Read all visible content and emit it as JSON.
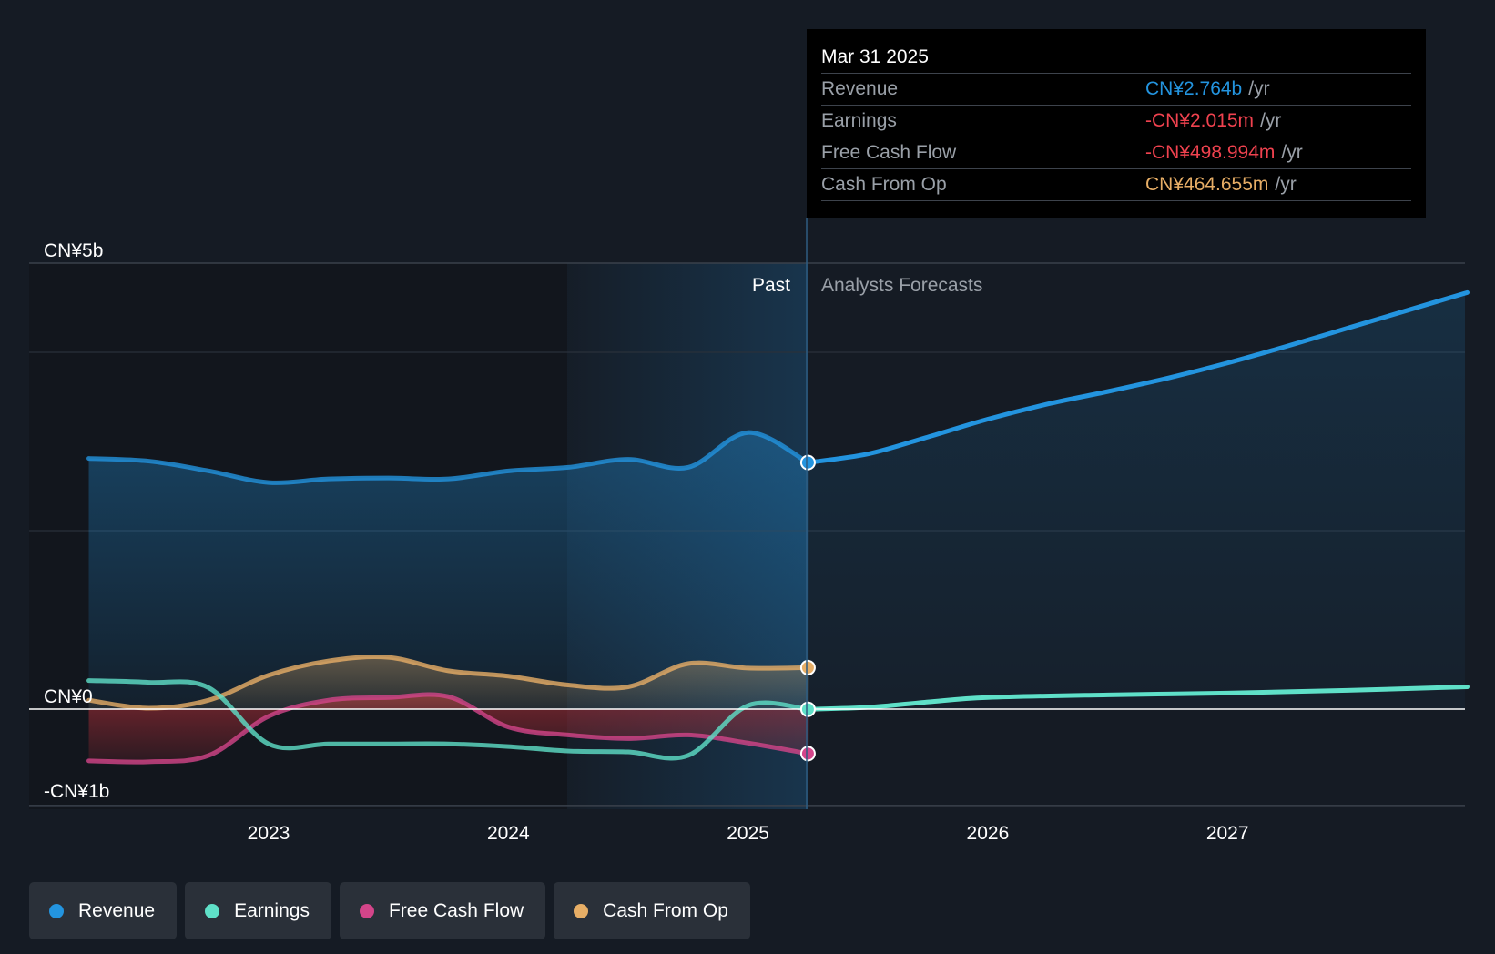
{
  "colors": {
    "revenue": "#2394df",
    "earnings": "#5fe0c8",
    "free_cash_flow": "#d3458a",
    "cash_from_op": "#e7ae66"
  },
  "tooltip": {
    "date": "Mar 31 2025",
    "rows": [
      {
        "label": "Revenue",
        "value": "CN¥2.764b",
        "unit": "/yr"
      },
      {
        "label": "Earnings",
        "value": "-CN¥2.015m",
        "unit": "/yr"
      },
      {
        "label": "Free Cash Flow",
        "value": "-CN¥498.994m",
        "unit": "/yr"
      },
      {
        "label": "Cash From Op",
        "value": "CN¥464.655m",
        "unit": "/yr"
      }
    ]
  },
  "labels": {
    "past": "Past",
    "forecast": "Analysts Forecasts"
  },
  "legend": [
    {
      "label": "Revenue"
    },
    {
      "label": "Earnings"
    },
    {
      "label": "Free Cash Flow"
    },
    {
      "label": "Cash From Op"
    }
  ],
  "chart_data": {
    "type": "line",
    "y_tick_labels": [
      "CN¥5b",
      "CN¥0",
      "-CN¥1b"
    ],
    "y_ticks": [
      5,
      0,
      -1
    ],
    "x_tick_labels": [
      "2023",
      "2024",
      "2025",
      "2026",
      "2027"
    ],
    "x_ticks": [
      2023,
      2024,
      2025,
      2026,
      2027
    ],
    "xlim": [
      2021.0,
      2028.0
    ],
    "ylim": [
      -1.1,
      5.0
    ],
    "past_start": 2024.25,
    "past_end": 2025.25,
    "unit": "CN¥ billions",
    "series": [
      {
        "name": "Revenue",
        "x": [
          2022.25,
          2022.5,
          2022.75,
          2023.0,
          2023.25,
          2023.5,
          2023.75,
          2024.0,
          2024.25,
          2024.5,
          2024.75,
          2025.0,
          2025.25,
          2025.5,
          2025.75,
          2026.0,
          2026.25,
          2026.5,
          2026.75,
          2027.0,
          2027.25,
          2027.5,
          2027.75,
          2028.0
        ],
        "y": [
          2.81,
          2.78,
          2.67,
          2.54,
          2.58,
          2.59,
          2.58,
          2.67,
          2.71,
          2.8,
          2.71,
          3.1,
          2.764,
          2.86,
          3.05,
          3.25,
          3.42,
          3.56,
          3.71,
          3.88,
          4.07,
          4.27,
          4.47,
          4.67
        ]
      },
      {
        "name": "Earnings",
        "x": [
          2022.25,
          2022.5,
          2022.75,
          2023.0,
          2023.25,
          2023.5,
          2023.75,
          2024.0,
          2024.25,
          2024.5,
          2024.75,
          2025.0,
          2025.25,
          2025.5,
          2025.75,
          2026.0,
          2026.5,
          2027.0,
          2027.5,
          2028.0
        ],
        "y": [
          0.32,
          0.3,
          0.24,
          -0.39,
          -0.39,
          -0.39,
          -0.39,
          -0.42,
          -0.47,
          -0.48,
          -0.52,
          0.04,
          -0.002,
          0.02,
          0.08,
          0.13,
          0.16,
          0.18,
          0.21,
          0.25
        ]
      },
      {
        "name": "Free Cash Flow",
        "x": [
          2022.25,
          2022.5,
          2022.75,
          2023.0,
          2023.25,
          2023.5,
          2023.75,
          2024.0,
          2024.25,
          2024.5,
          2024.75,
          2025.0,
          2025.25
        ],
        "y": [
          -0.58,
          -0.59,
          -0.52,
          -0.08,
          0.1,
          0.13,
          0.14,
          -0.2,
          -0.29,
          -0.33,
          -0.29,
          -0.38,
          -0.499
        ]
      },
      {
        "name": "Cash From Op",
        "x": [
          2022.25,
          2022.5,
          2022.75,
          2023.0,
          2023.25,
          2023.5,
          2023.75,
          2024.0,
          2024.25,
          2024.5,
          2024.75,
          2025.0,
          2025.25
        ],
        "y": [
          0.1,
          0.01,
          0.1,
          0.38,
          0.54,
          0.58,
          0.43,
          0.37,
          0.27,
          0.25,
          0.51,
          0.46,
          0.465
        ]
      }
    ]
  }
}
